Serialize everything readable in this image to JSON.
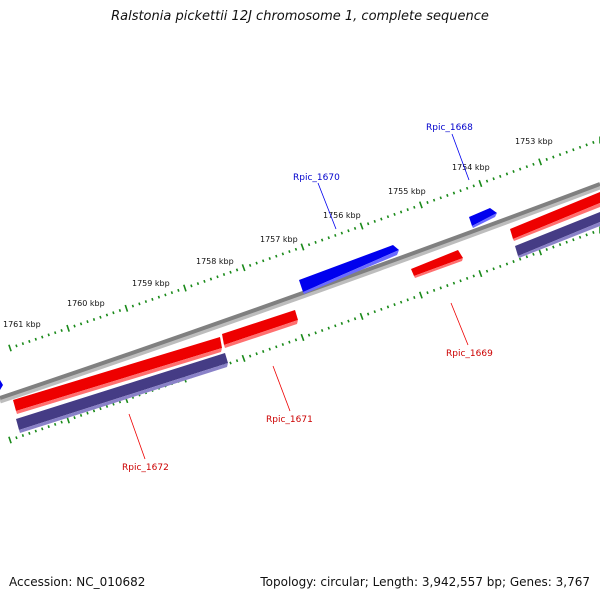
{
  "title": "Ralstonia pickettii 12J chromosome 1, complete sequence",
  "footer": {
    "accession": "Accession: NC_010682",
    "summary": "Topology: circular; Length: 3,942,557 bp; Genes: 3,767"
  },
  "colors": {
    "backbone": "#808080",
    "forward_gene": "#0000ee",
    "reverse_gene": "#ee0000",
    "cds": "#453c85",
    "ticks": "#1a8a1a",
    "forward_label": "#0000cc",
    "reverse_label": "#cc0000"
  },
  "kbp_labels": [
    "1753 kbp",
    "1754 kbp",
    "1755 kbp",
    "1756 kbp",
    "1757 kbp",
    "1758 kbp",
    "1759 kbp",
    "1760 kbp",
    "1761 kbp"
  ],
  "genes": [
    {
      "label": "Rpic_1668",
      "strand": "forward"
    },
    {
      "label": "Rpic_1669",
      "strand": "reverse"
    },
    {
      "label": "Rpic_1670",
      "strand": "forward"
    },
    {
      "label": "Rpic_1671",
      "strand": "reverse"
    },
    {
      "label": "Rpic_1672",
      "strand": "reverse"
    }
  ]
}
